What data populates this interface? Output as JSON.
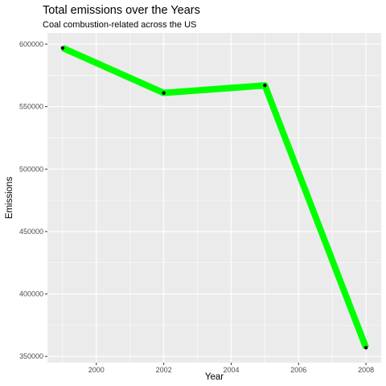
{
  "chart_data": {
    "type": "line",
    "title": "Total emissions over the Years",
    "subtitle": "Coal combustion-related across the US",
    "xlabel": "Year",
    "ylabel": "Emissions",
    "x": [
      1999,
      2002,
      2005,
      2008
    ],
    "series": [
      {
        "values": [
          597000,
          561000,
          567000,
          357000
        ]
      }
    ],
    "xlim": [
      1998.55,
      2008.45
    ],
    "ylim": [
      345000,
      609000
    ],
    "xticks": [
      2000,
      2002,
      2004,
      2006,
      2008
    ],
    "yticks": [
      350000,
      400000,
      450000,
      500000,
      550000,
      600000
    ],
    "grid": true,
    "line_color": "#00FF00",
    "point_color": "#000000",
    "panel_background": "#EBEBEB",
    "grid_color": "#FFFFFF"
  }
}
